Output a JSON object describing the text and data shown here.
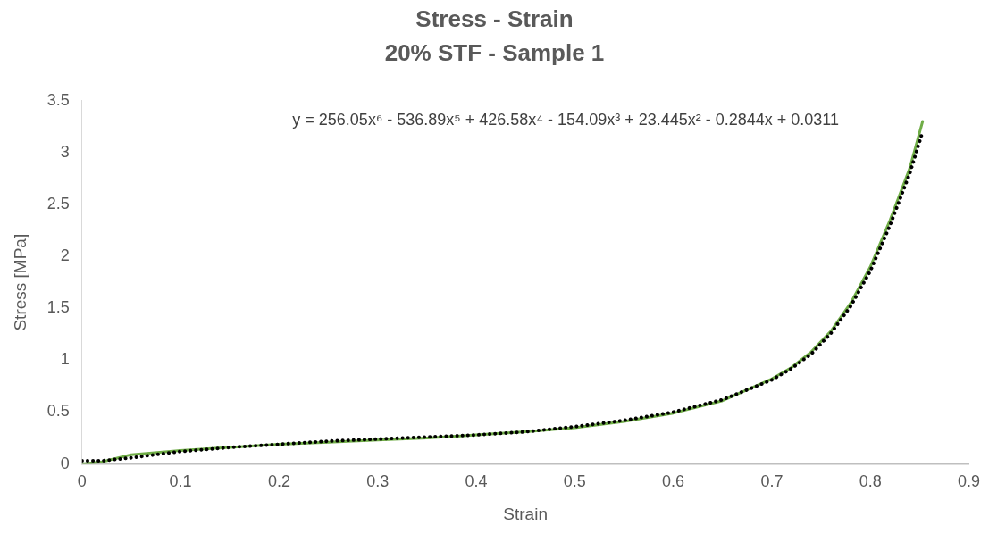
{
  "chart_data": {
    "type": "line",
    "title": "Stress - Strain",
    "subtitle": "20% STF - Sample 1",
    "xlabel": "Strain",
    "ylabel": "Stress [MPa]",
    "xlim": [
      0,
      0.9
    ],
    "xticks": [
      0,
      0.1,
      0.2,
      0.3,
      0.4,
      0.5,
      0.6,
      0.7,
      0.8,
      0.9
    ],
    "ylim": [
      0,
      3.5
    ],
    "yticks": [
      0,
      0.5,
      1,
      1.5,
      2,
      2.5,
      3,
      3.5
    ],
    "grid": false,
    "legend": false,
    "marker": "none",
    "annotations": [
      "y = 256.05x⁶ - 536.89x⁵ + 426.58x⁴ - 154.09x³ + 23.445x² - 0.2844x + 0.0311"
    ],
    "series": [
      {
        "color": "#70ad47",
        "line_style": "solid",
        "x": [
          0,
          0.02,
          0.05,
          0.1,
          0.15,
          0.2,
          0.25,
          0.3,
          0.35,
          0.4,
          0.45,
          0.5,
          0.55,
          0.6,
          0.65,
          0.7,
          0.72,
          0.74,
          0.76,
          0.78,
          0.8,
          0.82,
          0.84,
          0.853
        ],
        "values": [
          0,
          0.02,
          0.09,
          0.13,
          0.16,
          0.19,
          0.21,
          0.23,
          0.25,
          0.28,
          0.31,
          0.35,
          0.41,
          0.49,
          0.61,
          0.82,
          0.93,
          1.08,
          1.28,
          1.55,
          1.9,
          2.35,
          2.85,
          3.3
        ]
      },
      {
        "color": "#000000",
        "line_style": "dotted",
        "x": [
          0,
          0.02,
          0.05,
          0.1,
          0.15,
          0.2,
          0.25,
          0.3,
          0.35,
          0.4,
          0.45,
          0.5,
          0.55,
          0.6,
          0.65,
          0.7,
          0.72,
          0.74,
          0.76,
          0.78,
          0.8,
          0.82,
          0.84,
          0.853
        ],
        "values": [
          0.03,
          0.03,
          0.06,
          0.12,
          0.16,
          0.19,
          0.22,
          0.24,
          0.26,
          0.28,
          0.31,
          0.36,
          0.42,
          0.5,
          0.62,
          0.81,
          0.92,
          1.06,
          1.26,
          1.52,
          1.86,
          2.3,
          2.8,
          3.2
        ]
      }
    ]
  }
}
